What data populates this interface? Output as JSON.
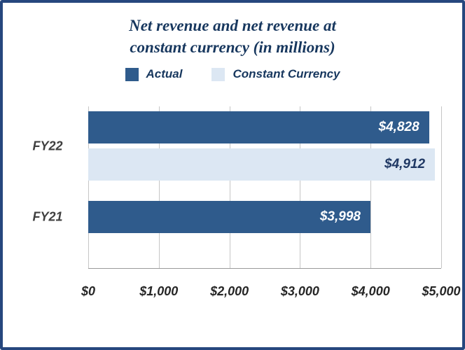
{
  "title": {
    "line1": "Net revenue and net revenue at",
    "line2": "constant currency (in millions)"
  },
  "legend": {
    "items": [
      {
        "label": "Actual",
        "color": "#2F5B8C"
      },
      {
        "label": "Constant Currency",
        "color": "#DCE7F3"
      }
    ]
  },
  "colors": {
    "frame": "#26477E",
    "title_text": "#17375E",
    "tick_text": "#262626",
    "category_text": "#404040",
    "grid_line": "#C6C6C6",
    "axis_line": "#9A9A9A"
  },
  "chart_data": {
    "type": "bar",
    "orientation": "horizontal",
    "title": "Net revenue and net revenue at constant currency (in millions)",
    "categories": [
      "FY22",
      "FY21"
    ],
    "series": [
      {
        "name": "Actual",
        "color": "#2F5B8C",
        "label_color": "#FFFFFF",
        "values": [
          4828,
          3998
        ],
        "labels": [
          "$4,828",
          "$3,998"
        ]
      },
      {
        "name": "Constant Currency",
        "color": "#DCE7F3",
        "label_color": "#1F3864",
        "values": [
          4912,
          null
        ],
        "labels": [
          "$4,912",
          null
        ]
      }
    ],
    "xlim": [
      0,
      5000
    ],
    "xticks": [
      "$0",
      "$1,000",
      "$2,000",
      "$3,000",
      "$4,000",
      "$5,000"
    ],
    "grid": "vertical",
    "legend_position": "top"
  }
}
